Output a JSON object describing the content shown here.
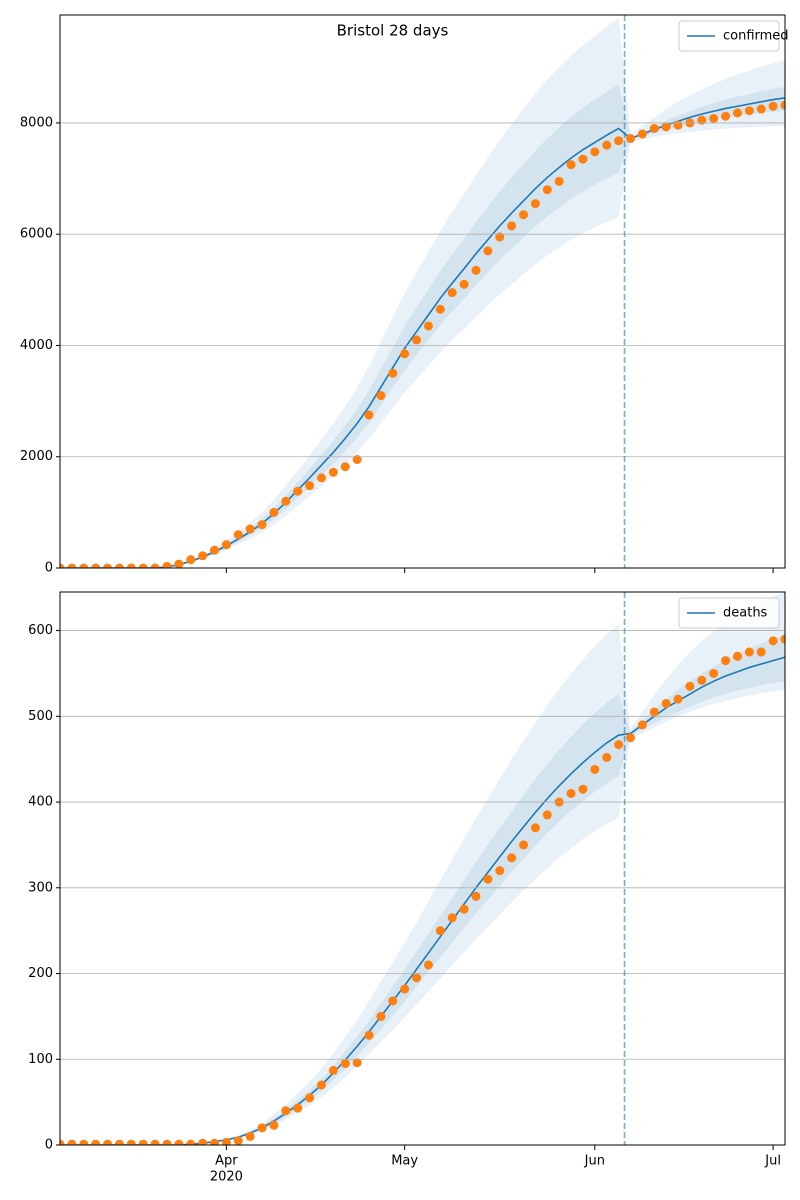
{
  "chart_data": [
    {
      "type": "line",
      "title": "Bristol 28 days",
      "ylim": [
        0,
        9940
      ],
      "yticks": [
        0,
        2000,
        4000,
        6000,
        8000
      ],
      "grid": true,
      "legend": "upper right",
      "vline": 47.5,
      "vline_color": "#1f77b4",
      "series": [
        {
          "name": "confirmed",
          "color": "#1f77b4",
          "values": [
            0,
            0,
            0,
            0,
            0,
            0,
            0,
            0,
            0,
            20,
            60,
            120,
            200,
            290,
            400,
            520,
            650,
            800,
            980,
            1180,
            1400,
            1620,
            1850,
            2080,
            2330,
            2600,
            2900,
            3250,
            3600,
            3950,
            4250,
            4550,
            4850,
            5120,
            5380,
            5650,
            5900,
            6150,
            6380,
            6600,
            6820,
            7020,
            7200,
            7370,
            7520,
            7650,
            7780,
            7900,
            7720,
            7800,
            7880,
            7960,
            8030,
            8100,
            8160,
            8210,
            8260,
            8300,
            8340,
            8380,
            8420,
            8450
          ]
        },
        {
          "color": "#ff7f0e",
          "style": "markers",
          "values": [
            0,
            0,
            0,
            0,
            0,
            0,
            0,
            0,
            0,
            30,
            70,
            150,
            220,
            320,
            420,
            600,
            700,
            780,
            1000,
            1200,
            1380,
            1480,
            1620,
            1720,
            1820,
            1950,
            2750,
            3100,
            3500,
            3850,
            4100,
            4350,
            4650,
            4950,
            5100,
            5350,
            5700,
            5950,
            6150,
            6350,
            6550,
            6800,
            6950,
            7250,
            7350,
            7480,
            7600,
            7680,
            7720,
            7800,
            7900,
            7930,
            7960,
            8000,
            8050,
            8080,
            8120,
            8180,
            8220,
            8250,
            8300,
            8320
          ]
        }
      ],
      "bands": [
        {
          "color": "#1f77b4",
          "upper": [
            0,
            0,
            0,
            0,
            0,
            0,
            0,
            0,
            0,
            25,
            75,
            150,
            250,
            360,
            500,
            650,
            810,
            1000,
            1230,
            1480,
            1750,
            2030,
            2310,
            2600,
            2910,
            3250,
            3630,
            4060,
            4500,
            4940,
            5310,
            5690,
            6060,
            6400,
            6730,
            7060,
            7380,
            7690,
            7980,
            8250,
            8530,
            8780,
            9000,
            9210,
            9400,
            9560,
            9730,
            9880,
            7800,
            7950,
            8100,
            8250,
            8380,
            8500,
            8600,
            8700,
            8790,
            8870,
            8940,
            9010,
            9070,
            9120
          ],
          "lower": [
            0,
            0,
            0,
            0,
            0,
            0,
            0,
            0,
            0,
            16,
            48,
            96,
            160,
            230,
            320,
            420,
            520,
            640,
            780,
            940,
            1120,
            1300,
            1480,
            1660,
            1860,
            2080,
            2320,
            2600,
            2880,
            3160,
            3400,
            3640,
            3880,
            4100,
            4300,
            4520,
            4720,
            4920,
            5100,
            5280,
            5460,
            5620,
            5760,
            5900,
            6020,
            6120,
            6220,
            6320,
            7650,
            7700,
            7740,
            7780,
            7810,
            7840,
            7860,
            7880,
            7900,
            7910,
            7920,
            7930,
            7940,
            7950
          ]
        },
        {
          "color": "#1f77b4",
          "upper": [
            0,
            0,
            0,
            0,
            0,
            0,
            0,
            0,
            0,
            22,
            66,
            130,
            220,
            320,
            440,
            570,
            720,
            880,
            1080,
            1300,
            1540,
            1780,
            2040,
            2290,
            2560,
            2860,
            3190,
            3580,
            3960,
            4350,
            4680,
            5010,
            5340,
            5630,
            5920,
            6220,
            6490,
            6770,
            7020,
            7260,
            7500,
            7720,
            7920,
            8110,
            8270,
            8420,
            8560,
            8690,
            7740,
            7840,
            7940,
            8040,
            8130,
            8210,
            8290,
            8360,
            8420,
            8470,
            8520,
            8570,
            8610,
            8650
          ],
          "lower": [
            0,
            0,
            0,
            0,
            0,
            0,
            0,
            0,
            0,
            18,
            54,
            110,
            180,
            260,
            360,
            470,
            590,
            720,
            880,
            1060,
            1260,
            1460,
            1670,
            1870,
            2100,
            2340,
            2610,
            2930,
            3240,
            3560,
            3830,
            4100,
            4370,
            4610,
            4840,
            5090,
            5310,
            5540,
            5740,
            5940,
            6140,
            6320,
            6480,
            6630,
            6770,
            6890,
            7000,
            7110,
            7700,
            7760,
            7820,
            7880,
            7930,
            7980,
            8020,
            8060,
            8100,
            8130,
            8160,
            8180,
            8200,
            8220
          ]
        }
      ]
    },
    {
      "type": "line",
      "ylim": [
        0,
        645
      ],
      "yticks": [
        0,
        100,
        200,
        300,
        400,
        500,
        600
      ],
      "grid": true,
      "legend": "upper right",
      "vline": 47.5,
      "vline_color": "#1f77b4",
      "categories": [
        null,
        null,
        null,
        null,
        null,
        null,
        null,
        null,
        null,
        null,
        null,
        null,
        null,
        null,
        "Apr",
        null,
        null,
        null,
        null,
        null,
        null,
        null,
        null,
        null,
        null,
        null,
        null,
        null,
        null,
        "May",
        null,
        null,
        null,
        null,
        null,
        null,
        null,
        null,
        null,
        null,
        null,
        null,
        null,
        null,
        null,
        "Jun",
        null,
        null,
        null,
        null,
        null,
        null,
        null,
        null,
        null,
        null,
        null,
        null,
        null,
        null,
        "Jul",
        null
      ],
      "x_sublabel": "2020",
      "series": [
        {
          "name": "deaths",
          "color": "#1f77b4",
          "values": [
            0,
            0,
            0,
            0,
            0,
            0,
            0,
            0,
            0,
            0,
            0,
            1,
            2,
            4,
            6,
            9,
            14,
            20,
            28,
            37,
            47,
            58,
            70,
            84,
            99,
            115,
            132,
            150,
            168,
            186,
            205,
            224,
            243,
            262,
            281,
            300,
            318,
            336,
            354,
            371,
            388,
            404,
            419,
            433,
            446,
            458,
            469,
            478,
            480,
            490,
            500,
            510,
            518,
            526,
            534,
            541,
            547,
            552,
            557,
            561,
            565,
            569
          ]
        },
        {
          "color": "#ff7f0e",
          "style": "markers",
          "values": [
            1,
            1,
            1,
            1,
            1,
            1,
            1,
            1,
            1,
            1,
            1,
            1,
            2,
            2,
            3,
            5,
            10,
            20,
            23,
            40,
            43,
            55,
            70,
            87,
            95,
            96,
            128,
            150,
            168,
            182,
            195,
            210,
            250,
            265,
            275,
            290,
            310,
            320,
            335,
            350,
            370,
            385,
            400,
            410,
            415,
            438,
            452,
            467,
            475,
            490,
            505,
            515,
            520,
            535,
            542,
            550,
            565,
            570,
            575,
            575,
            588,
            590
          ]
        }
      ],
      "bands": [
        {
          "color": "#1f77b4",
          "upper": [
            0,
            0,
            0,
            0,
            0,
            0,
            0,
            0,
            0,
            0,
            0,
            1,
            3,
            5,
            8,
            11,
            18,
            25,
            36,
            47,
            60,
            74,
            89,
            107,
            126,
            146,
            168,
            191,
            213,
            236,
            260,
            284,
            309,
            333,
            357,
            381,
            404,
            427,
            450,
            471,
            493,
            513,
            532,
            550,
            566,
            582,
            596,
            607,
            485,
            505,
            525,
            543,
            560,
            575,
            588,
            600,
            610,
            619,
            627,
            634,
            640,
            645
          ],
          "lower": [
            0,
            0,
            0,
            0,
            0,
            0,
            0,
            0,
            0,
            0,
            0,
            1,
            2,
            3,
            5,
            7,
            11,
            16,
            22,
            30,
            38,
            46,
            56,
            67,
            79,
            92,
            106,
            120,
            134,
            149,
            164,
            179,
            194,
            210,
            225,
            240,
            254,
            269,
            283,
            297,
            310,
            323,
            335,
            346,
            357,
            366,
            375,
            382,
            475,
            480,
            487,
            494,
            500,
            505,
            510,
            514,
            518,
            521,
            524,
            527,
            529,
            531
          ]
        },
        {
          "color": "#1f77b4",
          "upper": [
            0,
            0,
            0,
            0,
            0,
            0,
            0,
            0,
            0,
            0,
            0,
            1,
            2,
            4,
            7,
            10,
            15,
            22,
            31,
            41,
            52,
            64,
            77,
            92,
            109,
            127,
            145,
            165,
            185,
            205,
            226,
            246,
            267,
            288,
            309,
            330,
            350,
            370,
            389,
            408,
            427,
            444,
            461,
            476,
            491,
            504,
            516,
            526,
            482,
            495,
            508,
            520,
            531,
            541,
            550,
            558,
            566,
            573,
            579,
            585,
            590,
            595
          ],
          "lower": [
            0,
            0,
            0,
            0,
            0,
            0,
            0,
            0,
            0,
            0,
            0,
            1,
            2,
            4,
            5,
            8,
            13,
            18,
            25,
            33,
            42,
            52,
            63,
            76,
            89,
            104,
            119,
            135,
            151,
            167,
            185,
            202,
            219,
            236,
            253,
            270,
            286,
            302,
            319,
            334,
            349,
            364,
            377,
            390,
            401,
            412,
            422,
            430,
            477,
            485,
            492,
            499,
            505,
            511,
            517,
            522,
            526,
            530,
            533,
            536,
            539,
            541
          ]
        }
      ]
    }
  ]
}
